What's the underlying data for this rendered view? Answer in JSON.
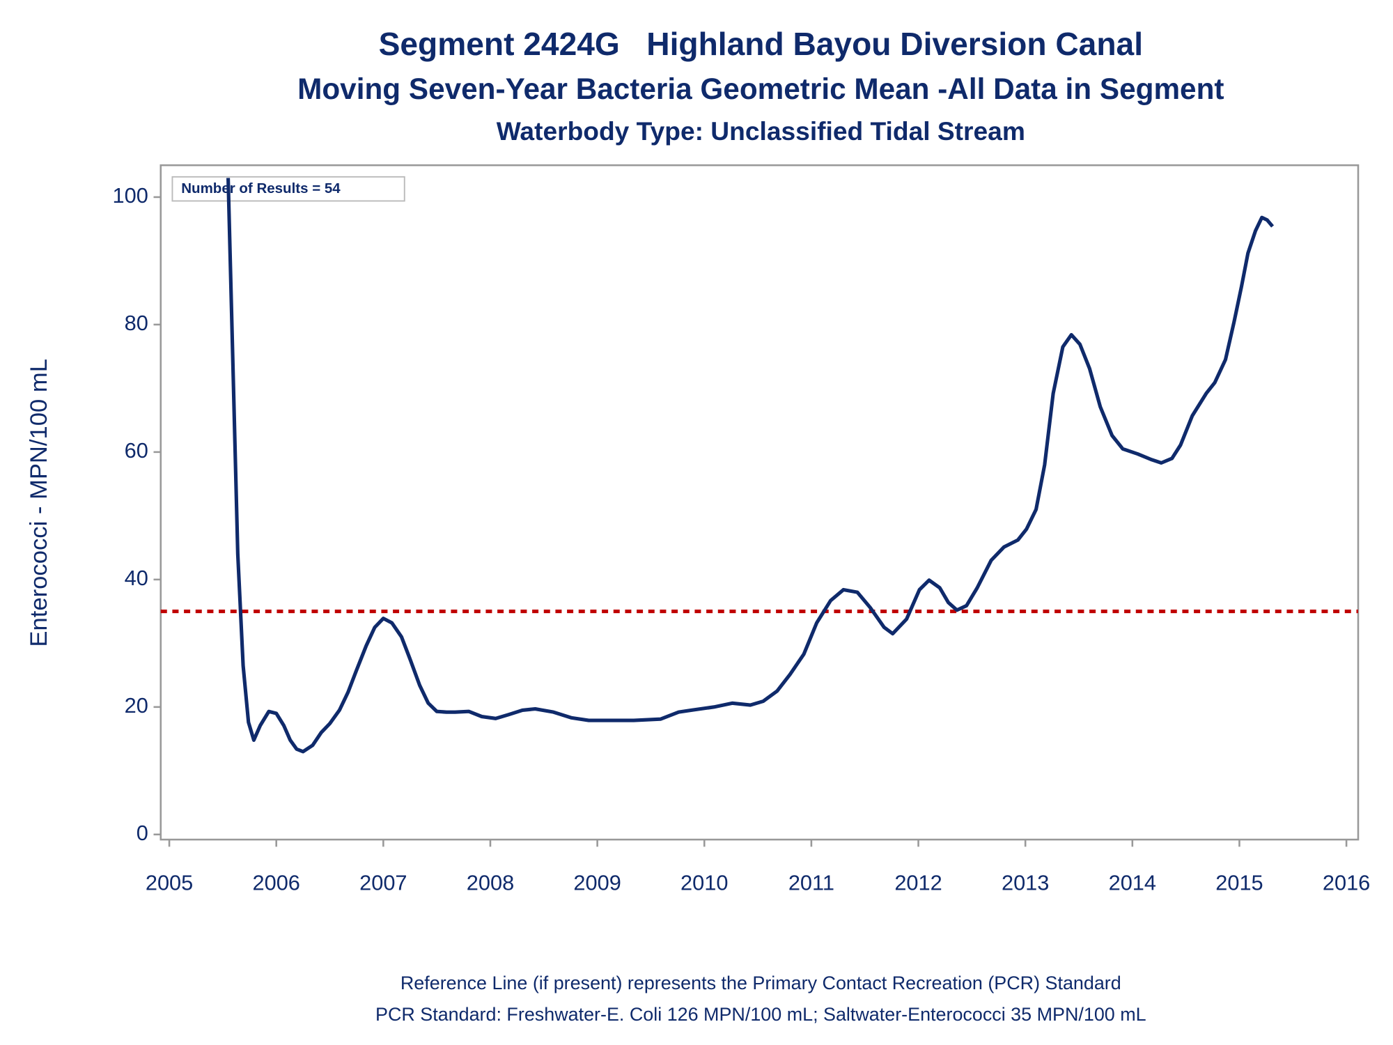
{
  "chart_data": {
    "type": "line",
    "title": "Segment 2424G   Highland Bayou Diversion Canal",
    "subtitle": "Moving Seven-Year Bacteria Geometric Mean -All Data in Segment",
    "subtitle2": "Waterbody Type: Unclassified Tidal Stream",
    "y_label": "Enterococci - MPN/100 mL",
    "annotation": "Number of Results = 54",
    "footnotes": [
      "Reference Line (if present) represents the Primary Contact Recreation (PCR) Standard",
      "PCR Standard: Freshwater-E. Coli 126 MPN/100 mL; Saltwater-Enterococci 35 MPN/100 mL"
    ],
    "xlim": [
      2004.92,
      2016.11
    ],
    "xticks": [
      2005,
      2006,
      2007,
      2008,
      2009,
      2010,
      2011,
      2012,
      2013,
      2014,
      2015,
      2016
    ],
    "ylim": [
      -0.8,
      105
    ],
    "yticks": [
      0,
      20,
      40,
      60,
      80,
      100
    ],
    "reference_line": {
      "value": 35,
      "color": "#c00000"
    },
    "x": [
      2005.55,
      2005.61,
      2005.64,
      2005.69,
      2005.74,
      2005.79,
      2005.85,
      2005.93,
      2006.0,
      2006.07,
      2006.13,
      2006.19,
      2006.25,
      2006.34,
      2006.42,
      2006.5,
      2006.59,
      2006.67,
      2006.75,
      2006.84,
      2006.92,
      2007.0,
      2007.08,
      2007.17,
      2007.25,
      2007.34,
      2007.42,
      2007.5,
      2007.59,
      2007.67,
      2007.8,
      2007.92,
      2008.05,
      2008.17,
      2008.3,
      2008.42,
      2008.59,
      2008.76,
      2008.92,
      2009.17,
      2009.34,
      2009.59,
      2009.76,
      2009.92,
      2010.09,
      2010.26,
      2010.43,
      2010.55,
      2010.68,
      2010.8,
      2010.93,
      2011.05,
      2011.18,
      2011.3,
      2011.43,
      2011.55,
      2011.68,
      2011.76,
      2011.89,
      2012.01,
      2012.1,
      2012.2,
      2012.28,
      2012.36,
      2012.45,
      2012.55,
      2012.68,
      2012.8,
      2012.93,
      2013.01,
      2013.1,
      2013.18,
      2013.26,
      2013.35,
      2013.43,
      2013.51,
      2013.6,
      2013.7,
      2013.81,
      2013.91,
      2014.05,
      2014.18,
      2014.27,
      2014.37,
      2014.45,
      2014.56,
      2014.69,
      2014.77,
      2014.87,
      2014.95,
      2015.02,
      2015.08,
      2015.15,
      2015.21,
      2015.26,
      2015.31
    ],
    "series": [
      {
        "name": "Geometric Mean",
        "color": "#0f2a6b",
        "values": [
          103,
          63.6,
          44,
          26.5,
          17.6,
          14.8,
          17.1,
          19.3,
          19,
          17.1,
          14.8,
          13.4,
          13,
          14,
          16,
          17.4,
          19.5,
          22.3,
          25.8,
          29.6,
          32.5,
          33.9,
          33.2,
          31,
          27.5,
          23.4,
          20.6,
          19.3,
          19.2,
          19.2,
          19.3,
          18.5,
          18.2,
          18.8,
          19.5,
          19.7,
          19.2,
          18.3,
          17.9,
          17.9,
          17.9,
          18.1,
          19.2,
          19.6,
          20,
          20.6,
          20.3,
          20.9,
          22.5,
          25.1,
          28.3,
          33.2,
          36.7,
          38.4,
          38,
          35.6,
          32.5,
          31.5,
          33.8,
          38.4,
          39.9,
          38.7,
          36.4,
          35.2,
          35.9,
          38.7,
          43,
          45.1,
          46.2,
          47.9,
          51,
          58,
          69.2,
          76.5,
          78.4,
          76.9,
          73.1,
          67.1,
          62.6,
          60.5,
          59.7,
          58.8,
          58.3,
          59,
          61.1,
          65.7,
          69.2,
          70.9,
          74.5,
          80.4,
          86,
          91.2,
          94.7,
          96.8,
          96.4,
          95.4
        ]
      }
    ]
  }
}
